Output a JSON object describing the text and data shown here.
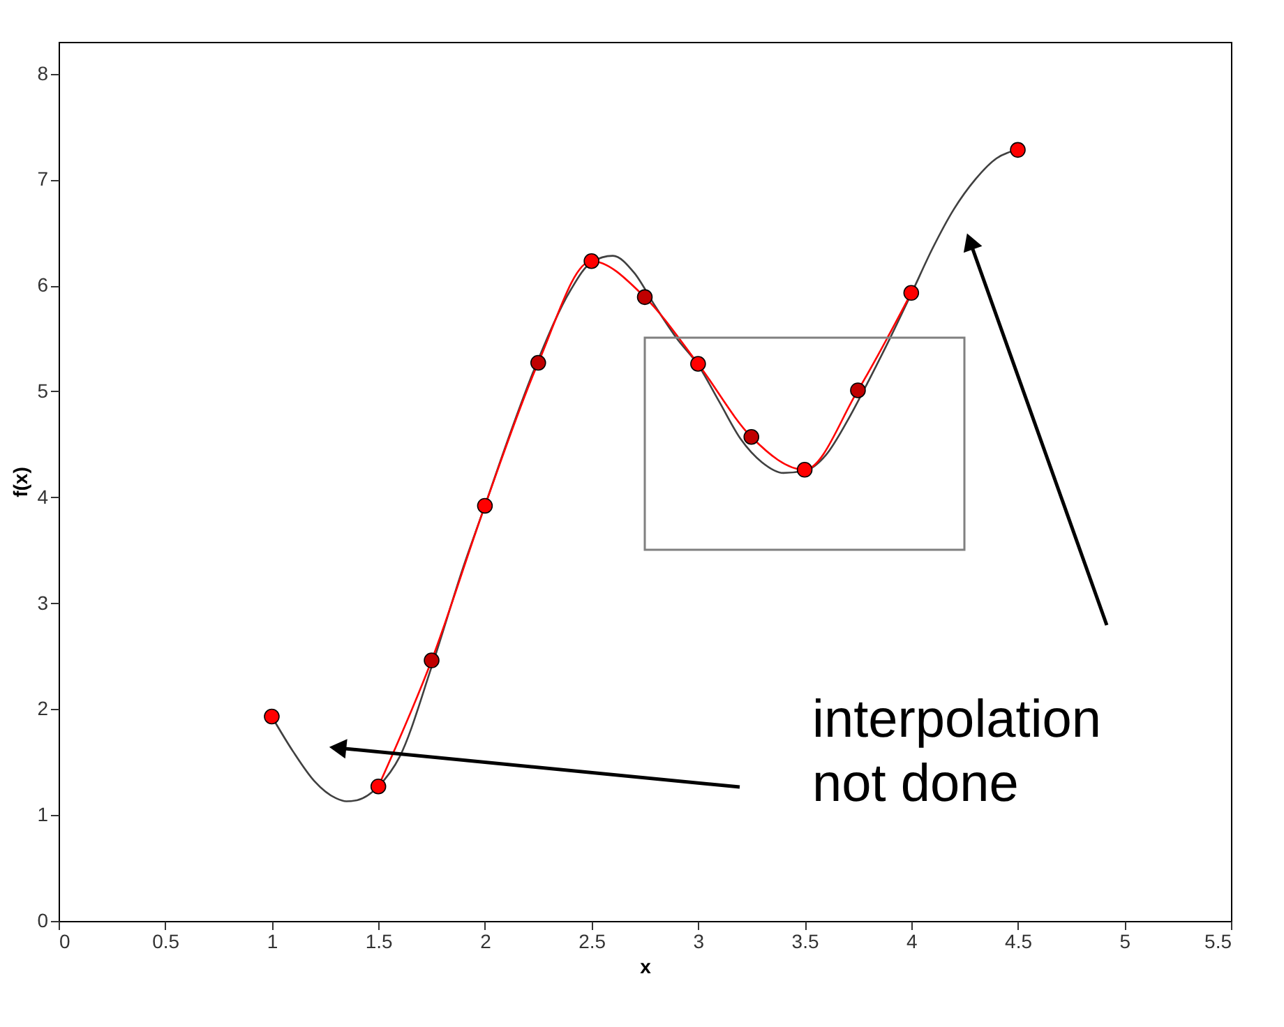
{
  "chart_data": {
    "type": "line",
    "xlabel": "x",
    "ylabel": "f(x)",
    "xlim": [
      0,
      5.5
    ],
    "ylim": [
      0,
      8.3
    ],
    "xticks": [
      0,
      0.5,
      1,
      1.5,
      2,
      2.5,
      3,
      3.5,
      4,
      4.5,
      5,
      5.5
    ],
    "yticks": [
      0,
      1,
      2,
      3,
      4,
      5,
      6,
      7,
      8
    ],
    "grid": false,
    "annotations": [
      "interpolation\nnot done"
    ],
    "series": [
      {
        "color": "#404040",
        "x": [
          1,
          1.1,
          1.2,
          1.3,
          1.35,
          1.4,
          1.5,
          1.6,
          1.75,
          1.9,
          2,
          2.1,
          2.25,
          2.4,
          2.5,
          2.6,
          2.7,
          2.8,
          2.9,
          3,
          3.1,
          3.2,
          3.3,
          3.4,
          3.5,
          3.6,
          3.7,
          3.8,
          3.9,
          4,
          4.1,
          4.2,
          4.3,
          4.4,
          4.5
        ],
        "values": [
          1.93,
          1.6,
          1.32,
          1.16,
          1.13,
          1.14,
          1.27,
          1.55,
          2.4,
          3.35,
          3.92,
          4.5,
          5.3,
          5.95,
          6.22,
          6.28,
          6.12,
          5.8,
          5.5,
          5.25,
          4.9,
          4.55,
          4.33,
          4.23,
          4.25,
          4.4,
          4.72,
          5.1,
          5.5,
          5.92,
          6.35,
          6.72,
          7.0,
          7.2,
          7.28
        ]
      },
      {
        "color": "#ff0000",
        "x": [
          1.5,
          1.75,
          2,
          2.25,
          2.5,
          2.75,
          3,
          3.25,
          3.5,
          3.75,
          4
        ],
        "values": [
          1.27,
          2.46,
          3.92,
          5.27,
          6.23,
          5.89,
          5.26,
          4.57,
          4.26,
          5.01,
          5.93
        ]
      },
      {
        "type": "scatter",
        "marker": "circle",
        "color": "#ff0000",
        "x": [
          1,
          1.5,
          2,
          2.5,
          3,
          3.5,
          4,
          4.5
        ],
        "values": [
          1.93,
          1.27,
          3.92,
          6.23,
          5.26,
          4.26,
          5.93,
          7.28
        ]
      },
      {
        "type": "scatter",
        "marker": "circle",
        "color": "#c00000",
        "x": [
          1.75,
          2.25,
          2.75,
          3.25,
          3.75
        ],
        "values": [
          2.46,
          5.27,
          5.89,
          4.57,
          5.01
        ]
      }
    ]
  }
}
